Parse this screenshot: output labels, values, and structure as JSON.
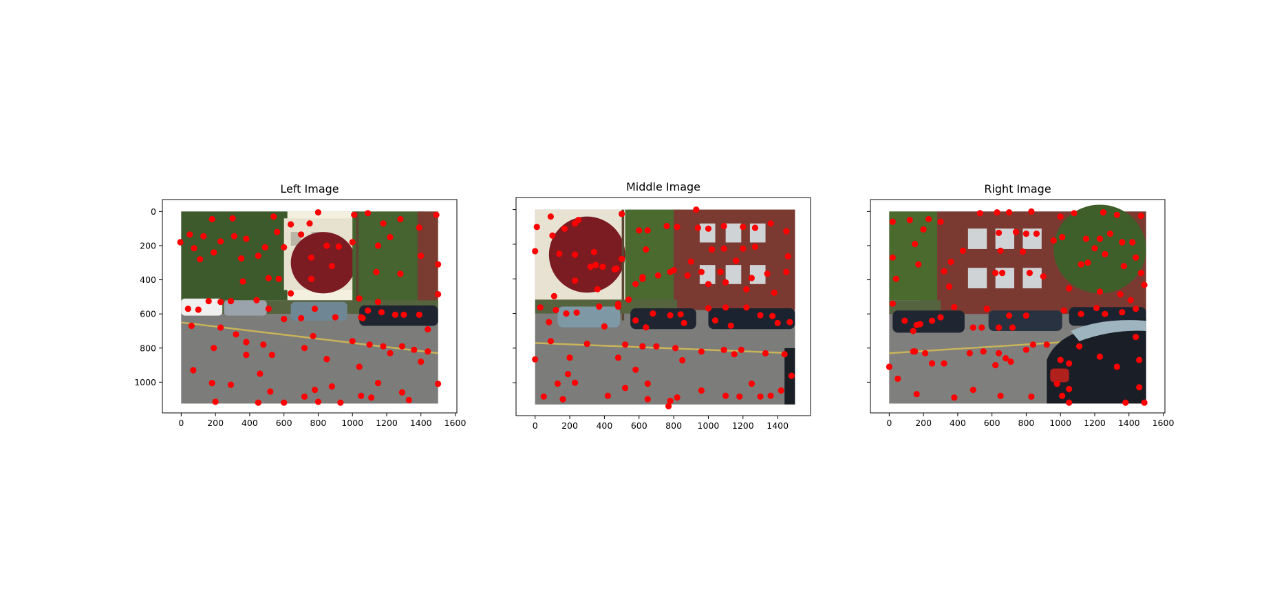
{
  "chart_data": [
    {
      "type": "scatter",
      "title": "Left Image",
      "x_ticks": [
        0,
        200,
        400,
        600,
        800,
        1000,
        1200,
        1400,
        1600
      ],
      "y_ticks": [
        0,
        200,
        400,
        600,
        800,
        1000
      ],
      "xlim": [
        -110,
        1610
      ],
      "ylim": [
        1180,
        -70
      ],
      "image_extent": [
        0,
        1500,
        1125,
        0
      ],
      "image_description": "street scene with parked cars, houses and a red-leaf tree",
      "marker_color": "#ff0000",
      "points": [
        [
          -5,
          180
        ],
        [
          50,
          135
        ],
        [
          75,
          215
        ],
        [
          110,
          280
        ],
        [
          130,
          145
        ],
        [
          180,
          45
        ],
        [
          190,
          240
        ],
        [
          230,
          175
        ],
        [
          300,
          40
        ],
        [
          310,
          145
        ],
        [
          350,
          275
        ],
        [
          380,
          160
        ],
        [
          450,
          260
        ],
        [
          490,
          210
        ],
        [
          540,
          30
        ],
        [
          560,
          120
        ],
        [
          600,
          210
        ],
        [
          640,
          75
        ],
        [
          700,
          135
        ],
        [
          750,
          70
        ],
        [
          760,
          270
        ],
        [
          800,
          5
        ],
        [
          850,
          200
        ],
        [
          880,
          320
        ],
        [
          920,
          205
        ],
        [
          1000,
          180
        ],
        [
          1010,
          20
        ],
        [
          1090,
          10
        ],
        [
          1150,
          200
        ],
        [
          1180,
          70
        ],
        [
          1220,
          150
        ],
        [
          1280,
          45
        ],
        [
          1390,
          95
        ],
        [
          1400,
          260
        ],
        [
          1490,
          20
        ],
        [
          1500,
          310
        ],
        [
          1500,
          485
        ],
        [
          1140,
          355
        ],
        [
          1280,
          365
        ],
        [
          360,
          410
        ],
        [
          510,
          390
        ],
        [
          570,
          395
        ],
        [
          640,
          480
        ],
        [
          760,
          395
        ],
        [
          1040,
          510
        ],
        [
          1060,
          625
        ],
        [
          1090,
          580
        ],
        [
          1170,
          590
        ],
        [
          1250,
          605
        ],
        [
          1300,
          605
        ],
        [
          1390,
          605
        ],
        [
          1440,
          690
        ],
        [
          40,
          570
        ],
        [
          100,
          575
        ],
        [
          160,
          525
        ],
        [
          230,
          530
        ],
        [
          290,
          525
        ],
        [
          440,
          520
        ],
        [
          510,
          570
        ],
        [
          600,
          630
        ],
        [
          700,
          625
        ],
        [
          780,
          570
        ],
        [
          900,
          620
        ],
        [
          1050,
          620
        ],
        [
          1150,
          530
        ],
        [
          60,
          670
        ],
        [
          230,
          680
        ],
        [
          320,
          720
        ],
        [
          380,
          765
        ],
        [
          480,
          780
        ],
        [
          380,
          840
        ],
        [
          530,
          840
        ],
        [
          720,
          800
        ],
        [
          770,
          730
        ],
        [
          850,
          865
        ],
        [
          1000,
          760
        ],
        [
          1100,
          780
        ],
        [
          1180,
          790
        ],
        [
          1220,
          830
        ],
        [
          1290,
          790
        ],
        [
          1360,
          810
        ],
        [
          1400,
          880
        ],
        [
          1440,
          820
        ],
        [
          190,
          800
        ],
        [
          70,
          930
        ],
        [
          180,
          1005
        ],
        [
          290,
          1015
        ],
        [
          460,
          950
        ],
        [
          520,
          1055
        ],
        [
          720,
          1085
        ],
        [
          800,
          1115
        ],
        [
          880,
          1025
        ],
        [
          930,
          1120
        ],
        [
          1040,
          910
        ],
        [
          1050,
          1080
        ],
        [
          1110,
          1090
        ],
        [
          1150,
          1005
        ],
        [
          1290,
          1060
        ],
        [
          1330,
          1105
        ],
        [
          1500,
          1010
        ],
        [
          200,
          1115
        ],
        [
          450,
          1120
        ],
        [
          600,
          1120
        ],
        [
          780,
          1045
        ]
      ]
    },
    {
      "type": "scatter",
      "title": "Middle Image",
      "x_ticks": [
        0,
        200,
        400,
        600,
        800,
        1000,
        1200,
        1400
      ],
      "y_ticks": [
        0,
        200,
        400,
        600,
        800,
        1000
      ],
      "xlim": [
        -110,
        1590
      ],
      "ylim": [
        1190,
        -70
      ],
      "image_extent": [
        0,
        1500,
        1125,
        0
      ],
      "image_description": "brick apartment building with parked cars on a street",
      "marker_color": "#ff0000",
      "points": [
        [
          0,
          240
        ],
        [
          10,
          100
        ],
        [
          90,
          40
        ],
        [
          100,
          150
        ],
        [
          170,
          110
        ],
        [
          230,
          80
        ],
        [
          250,
          60
        ],
        [
          140,
          255
        ],
        [
          230,
          260
        ],
        [
          340,
          245
        ],
        [
          350,
          320
        ],
        [
          390,
          330
        ],
        [
          470,
          340
        ],
        [
          500,
          285
        ],
        [
          500,
          25
        ],
        [
          600,
          120
        ],
        [
          620,
          400
        ],
        [
          640,
          230
        ],
        [
          650,
          120
        ],
        [
          760,
          95
        ],
        [
          800,
          350
        ],
        [
          820,
          100
        ],
        [
          900,
          300
        ],
        [
          930,
          0
        ],
        [
          940,
          105
        ],
        [
          1000,
          110
        ],
        [
          1020,
          230
        ],
        [
          1090,
          95
        ],
        [
          1090,
          225
        ],
        [
          1160,
          295
        ],
        [
          1200,
          100
        ],
        [
          1200,
          225
        ],
        [
          1270,
          105
        ],
        [
          1270,
          215
        ],
        [
          1360,
          80
        ],
        [
          1450,
          125
        ],
        [
          1460,
          270
        ],
        [
          1450,
          360
        ],
        [
          1340,
          370
        ],
        [
          1380,
          480
        ],
        [
          1250,
          395
        ],
        [
          1220,
          460
        ],
        [
          1100,
          420
        ],
        [
          1070,
          360
        ],
        [
          1000,
          430
        ],
        [
          960,
          360
        ],
        [
          880,
          380
        ],
        [
          780,
          360
        ],
        [
          710,
          380
        ],
        [
          620,
          390
        ],
        [
          580,
          430
        ],
        [
          540,
          520
        ],
        [
          480,
          560
        ],
        [
          460,
          345
        ],
        [
          360,
          460
        ],
        [
          320,
          330
        ],
        [
          230,
          410
        ],
        [
          180,
          600
        ],
        [
          110,
          500
        ],
        [
          120,
          580
        ],
        [
          80,
          650
        ],
        [
          30,
          565
        ],
        [
          240,
          595
        ],
        [
          370,
          560
        ],
        [
          400,
          675
        ],
        [
          480,
          545
        ],
        [
          580,
          640
        ],
        [
          640,
          680
        ],
        [
          680,
          600
        ],
        [
          780,
          610
        ],
        [
          840,
          605
        ],
        [
          860,
          655
        ],
        [
          1000,
          570
        ],
        [
          1040,
          640
        ],
        [
          1100,
          565
        ],
        [
          1130,
          670
        ],
        [
          1220,
          565
        ],
        [
          1300,
          610
        ],
        [
          1370,
          615
        ],
        [
          1400,
          655
        ],
        [
          1470,
          650
        ],
        [
          1480,
          960
        ],
        [
          0,
          865
        ],
        [
          90,
          760
        ],
        [
          200,
          855
        ],
        [
          300,
          775
        ],
        [
          480,
          855
        ],
        [
          520,
          780
        ],
        [
          620,
          790
        ],
        [
          700,
          790
        ],
        [
          810,
          800
        ],
        [
          850,
          870
        ],
        [
          960,
          820
        ],
        [
          1090,
          810
        ],
        [
          1150,
          835
        ],
        [
          1190,
          810
        ],
        [
          1330,
          830
        ],
        [
          1440,
          835
        ],
        [
          50,
          1080
        ],
        [
          130,
          1005
        ],
        [
          160,
          1095
        ],
        [
          190,
          950
        ],
        [
          230,
          1000
        ],
        [
          420,
          1075
        ],
        [
          520,
          1030
        ],
        [
          580,
          925
        ],
        [
          650,
          1005
        ],
        [
          780,
          1105
        ],
        [
          820,
          1085
        ],
        [
          960,
          1045
        ],
        [
          1100,
          1075
        ],
        [
          1180,
          1080
        ],
        [
          1250,
          1005
        ],
        [
          1300,
          1080
        ],
        [
          1360,
          1075
        ],
        [
          1420,
          1045
        ],
        [
          770,
          1135
        ],
        [
          650,
          1095
        ]
      ]
    },
    {
      "type": "scatter",
      "title": "Right Image",
      "x_ticks": [
        0,
        200,
        400,
        600,
        800,
        1000,
        1200,
        1400,
        1600
      ],
      "y_ticks": [
        0,
        200,
        400,
        600,
        800,
        1000
      ],
      "xlim": [
        -110,
        1610
      ],
      "ylim": [
        1180,
        -70
      ],
      "image_extent": [
        0,
        1500,
        1125,
        0
      ],
      "image_description": "brick building with trees and a close-up black sedan on the right",
      "marker_color": "#ff0000",
      "points": [
        [
          20,
          60
        ],
        [
          20,
          270
        ],
        [
          40,
          395
        ],
        [
          120,
          50
        ],
        [
          150,
          190
        ],
        [
          170,
          310
        ],
        [
          200,
          105
        ],
        [
          230,
          45
        ],
        [
          300,
          60
        ],
        [
          320,
          350
        ],
        [
          360,
          295
        ],
        [
          350,
          440
        ],
        [
          430,
          230
        ],
        [
          530,
          10
        ],
        [
          570,
          570
        ],
        [
          620,
          360
        ],
        [
          630,
          5
        ],
        [
          640,
          125
        ],
        [
          650,
          230
        ],
        [
          660,
          360
        ],
        [
          700,
          5
        ],
        [
          740,
          120
        ],
        [
          780,
          235
        ],
        [
          800,
          130
        ],
        [
          820,
          360
        ],
        [
          830,
          0
        ],
        [
          860,
          130
        ],
        [
          900,
          380
        ],
        [
          960,
          170
        ],
        [
          1000,
          30
        ],
        [
          1010,
          150
        ],
        [
          1050,
          450
        ],
        [
          1080,
          10
        ],
        [
          1120,
          310
        ],
        [
          1150,
          160
        ],
        [
          1160,
          300
        ],
        [
          1200,
          215
        ],
        [
          1230,
          160
        ],
        [
          1230,
          470
        ],
        [
          1250,
          5
        ],
        [
          1260,
          250
        ],
        [
          1290,
          130
        ],
        [
          1330,
          20
        ],
        [
          1350,
          485
        ],
        [
          1360,
          180
        ],
        [
          1370,
          320
        ],
        [
          1420,
          180
        ],
        [
          1440,
          270
        ],
        [
          1440,
          570
        ],
        [
          1470,
          25
        ],
        [
          1470,
          360
        ],
        [
          1490,
          430
        ],
        [
          20,
          540
        ],
        [
          90,
          640
        ],
        [
          140,
          700
        ],
        [
          180,
          660
        ],
        [
          250,
          640
        ],
        [
          300,
          620
        ],
        [
          380,
          560
        ],
        [
          490,
          680
        ],
        [
          540,
          680
        ],
        [
          640,
          680
        ],
        [
          700,
          610
        ],
        [
          720,
          680
        ],
        [
          800,
          610
        ],
        [
          1020,
          580
        ],
        [
          1120,
          600
        ],
        [
          1210,
          565
        ],
        [
          1260,
          600
        ],
        [
          1360,
          590
        ],
        [
          1410,
          520
        ],
        [
          140,
          820
        ],
        [
          160,
          665
        ],
        [
          210,
          830
        ],
        [
          250,
          890
        ],
        [
          320,
          890
        ],
        [
          470,
          830
        ],
        [
          550,
          820
        ],
        [
          620,
          900
        ],
        [
          640,
          830
        ],
        [
          680,
          860
        ],
        [
          710,
          880
        ],
        [
          800,
          810
        ],
        [
          840,
          780
        ],
        [
          920,
          780
        ],
        [
          1000,
          870
        ],
        [
          1050,
          890
        ],
        [
          1110,
          790
        ],
        [
          1230,
          850
        ],
        [
          1330,
          910
        ],
        [
          1440,
          735
        ],
        [
          1460,
          870
        ],
        [
          0,
          910
        ],
        [
          50,
          980
        ],
        [
          150,
          820
        ],
        [
          160,
          1070
        ],
        [
          380,
          1090
        ],
        [
          490,
          1045
        ],
        [
          650,
          1080
        ],
        [
          830,
          1085
        ],
        [
          980,
          1010
        ],
        [
          1010,
          1080
        ],
        [
          1050,
          1040
        ],
        [
          1050,
          1120
        ],
        [
          1380,
          1120
        ],
        [
          1460,
          1030
        ],
        [
          1490,
          1120
        ]
      ]
    }
  ]
}
